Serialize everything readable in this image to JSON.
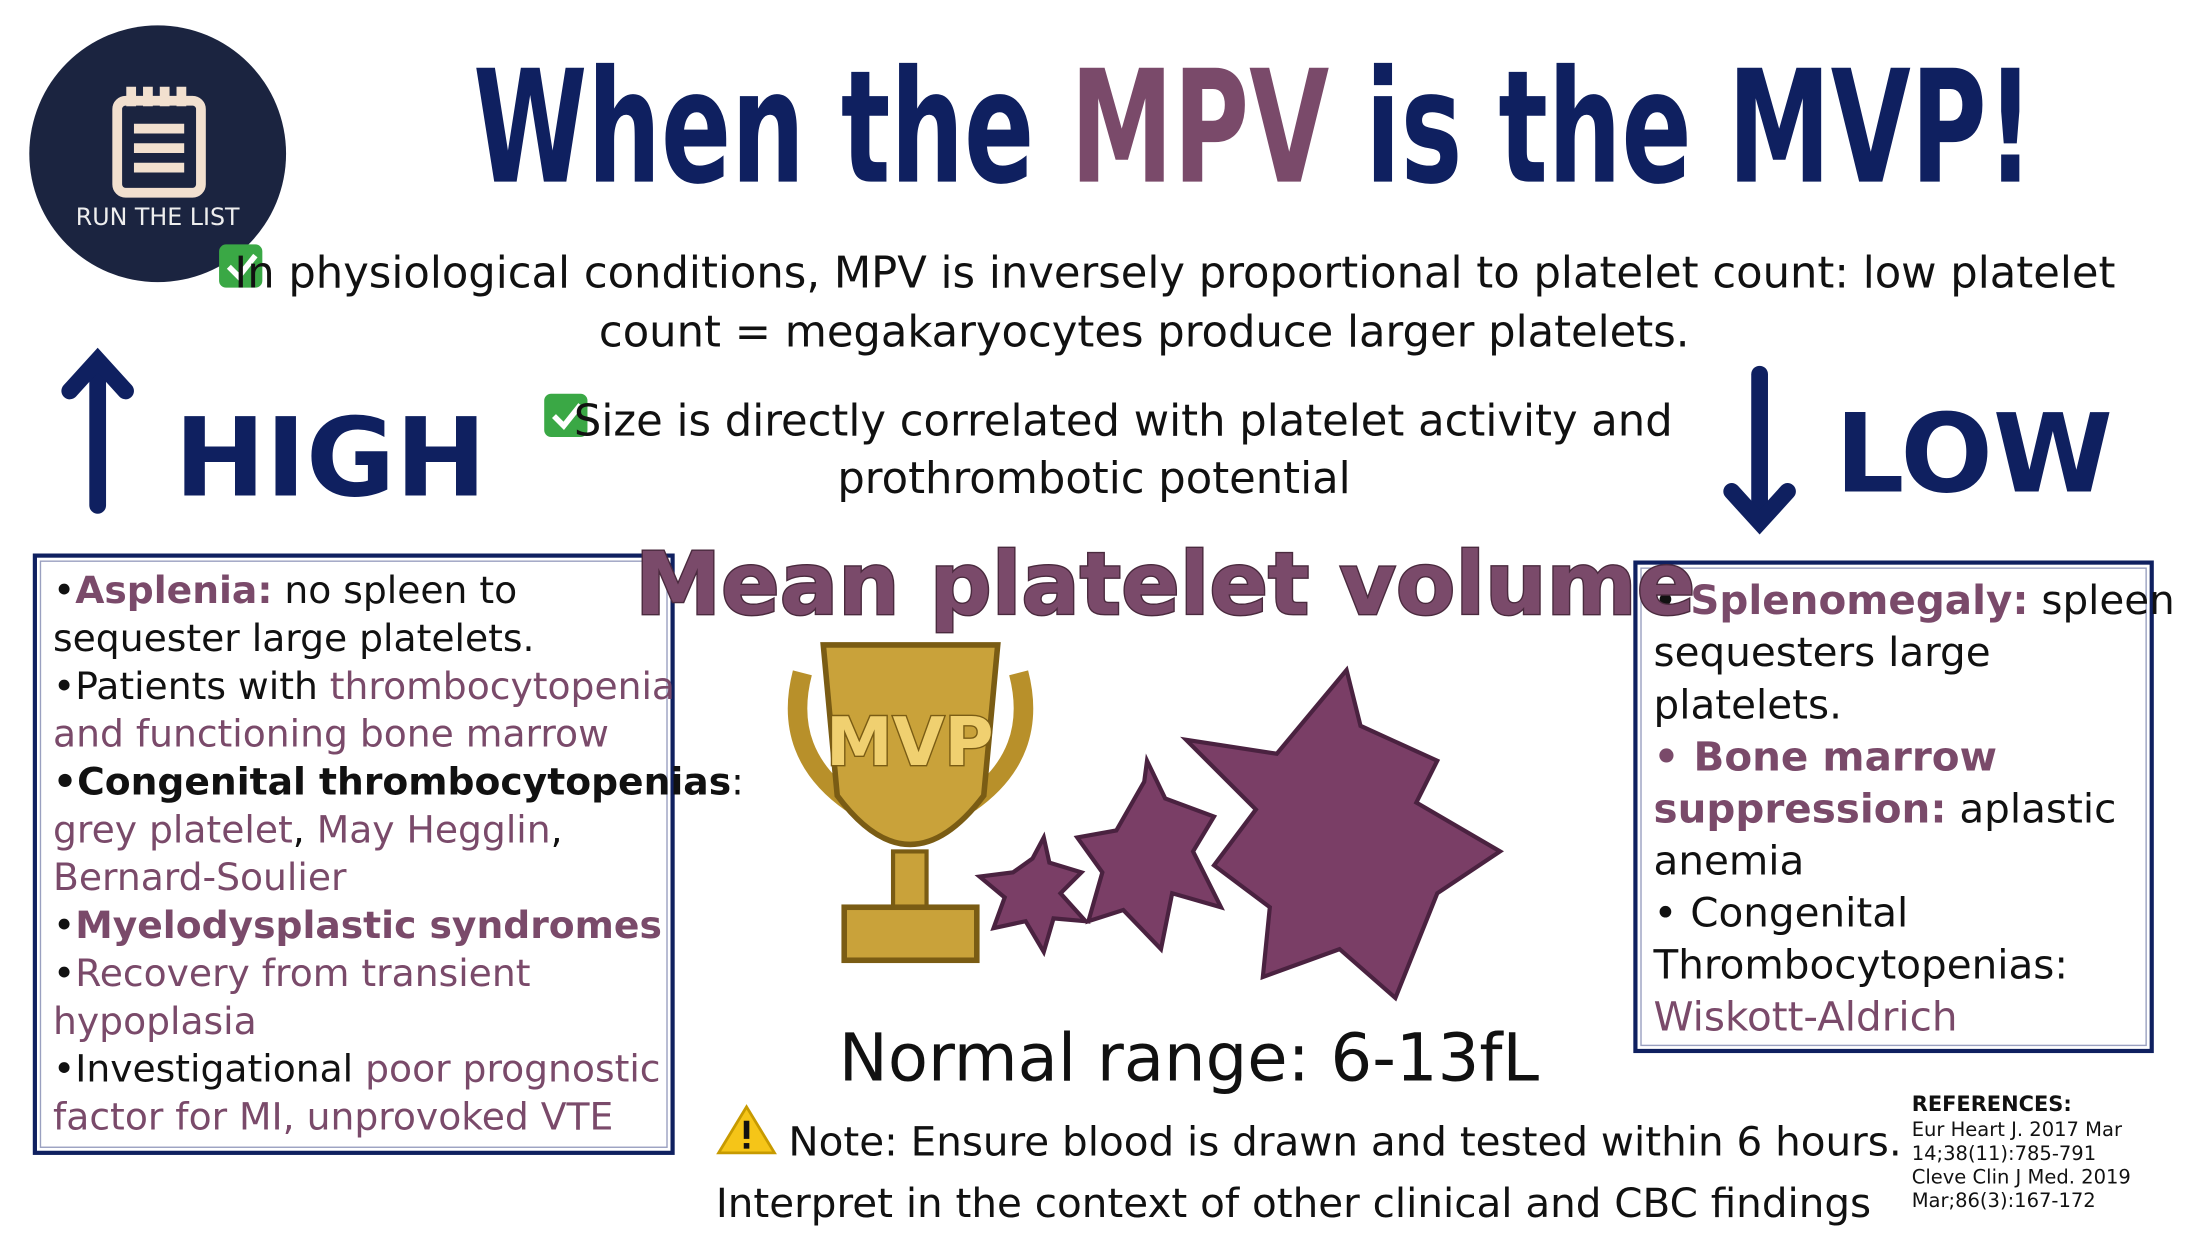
{
  "logo": {
    "label": "RUN THE LIST"
  },
  "title": {
    "parts": [
      "When the ",
      "MPV",
      " is the MVP!"
    ]
  },
  "facts": [
    {
      "lines": [
        "In physiological conditions, MPV is inversely proportional to platelet count: low platelet",
        "count = megakaryocytes produce larger platelets."
      ]
    },
    {
      "lines": [
        "Size is directly correlated with platelet activity and",
        "prothrombotic potential"
      ]
    }
  ],
  "high": {
    "heading": "HIGH",
    "lines": [
      {
        "segments": [
          {
            "text": "•",
            "style": "plain"
          },
          {
            "text": "Asplenia:",
            "style": "accent-bold"
          },
          {
            "text": " no spleen to",
            "style": "plain"
          }
        ]
      },
      {
        "segments": [
          {
            "text": "sequester large platelets.",
            "style": "plain"
          }
        ]
      },
      {
        "segments": [
          {
            "text": "•Patients with ",
            "style": "plain"
          },
          {
            "text": "thrombocytopenia",
            "style": "accent"
          }
        ]
      },
      {
        "segments": [
          {
            "text": "and functioning bone marrow",
            "style": "accent"
          }
        ]
      },
      {
        "segments": [
          {
            "text": "•Congenital thrombocytopenias",
            "style": "bold"
          },
          {
            "text": ":",
            "style": "plain"
          }
        ]
      },
      {
        "segments": [
          {
            "text": "grey platelet",
            "style": "accent"
          },
          {
            "text": ", ",
            "style": "plain"
          },
          {
            "text": "May Hegglin",
            "style": "accent"
          },
          {
            "text": ",",
            "style": "plain"
          }
        ]
      },
      {
        "segments": [
          {
            "text": "Bernard-Soulier",
            "style": "accent"
          }
        ]
      },
      {
        "segments": [
          {
            "text": "•",
            "style": "plain"
          },
          {
            "text": "Myelodysplastic syndromes",
            "style": "accent-bold"
          }
        ]
      },
      {
        "segments": [
          {
            "text": "•",
            "style": "plain"
          },
          {
            "text": "Recovery from transient",
            "style": "accent"
          }
        ]
      },
      {
        "segments": [
          {
            "text": "hypoplasia",
            "style": "accent"
          }
        ]
      },
      {
        "segments": [
          {
            "text": "•Investigational ",
            "style": "plain"
          },
          {
            "text": "poor prognostic",
            "style": "accent"
          }
        ]
      },
      {
        "segments": [
          {
            "text": "factor for MI, unprovoked VTE",
            "style": "accent"
          }
        ]
      }
    ]
  },
  "low": {
    "heading": "LOW",
    "lines": [
      {
        "segments": [
          {
            "text": "• ",
            "style": "plain"
          },
          {
            "text": "Splenomegaly:",
            "style": "accent-bold"
          },
          {
            "text": " spleen",
            "style": "plain"
          }
        ]
      },
      {
        "segments": [
          {
            "text": "sequesters large",
            "style": "plain"
          }
        ]
      },
      {
        "segments": [
          {
            "text": "platelets.",
            "style": "plain"
          }
        ]
      },
      {
        "segments": [
          {
            "text": "• Bone marrow",
            "style": "accent-bold"
          }
        ]
      },
      {
        "segments": [
          {
            "text": "suppression:",
            "style": "accent-bold"
          },
          {
            "text": " aplastic",
            "style": "plain"
          }
        ]
      },
      {
        "segments": [
          {
            "text": "anemia",
            "style": "plain"
          }
        ]
      },
      {
        "segments": [
          {
            "text": "• Congenital",
            "style": "plain"
          }
        ]
      },
      {
        "segments": [
          {
            "text": "Thrombocytopenias:",
            "style": "plain"
          }
        ]
      },
      {
        "segments": [
          {
            "text": "Wiskott-Aldrich",
            "style": "accent"
          }
        ]
      }
    ]
  },
  "center": {
    "title": "Mean platelet volume",
    "trophy_label": "MVP",
    "normal_range": "Normal range: 6-13fL",
    "note_lines": [
      "Note: Ensure blood is drawn and tested within 6 hours.",
      "Interpret in the context of other clinical and CBC findings"
    ]
  },
  "references": {
    "heading": "REFERENCES:",
    "lines": [
      "Eur Heart J. 2017 Mar",
      "14;38(11):785-791",
      "Cleve Clin J Med. 2019",
      "Mar;86(3):167-172"
    ]
  }
}
